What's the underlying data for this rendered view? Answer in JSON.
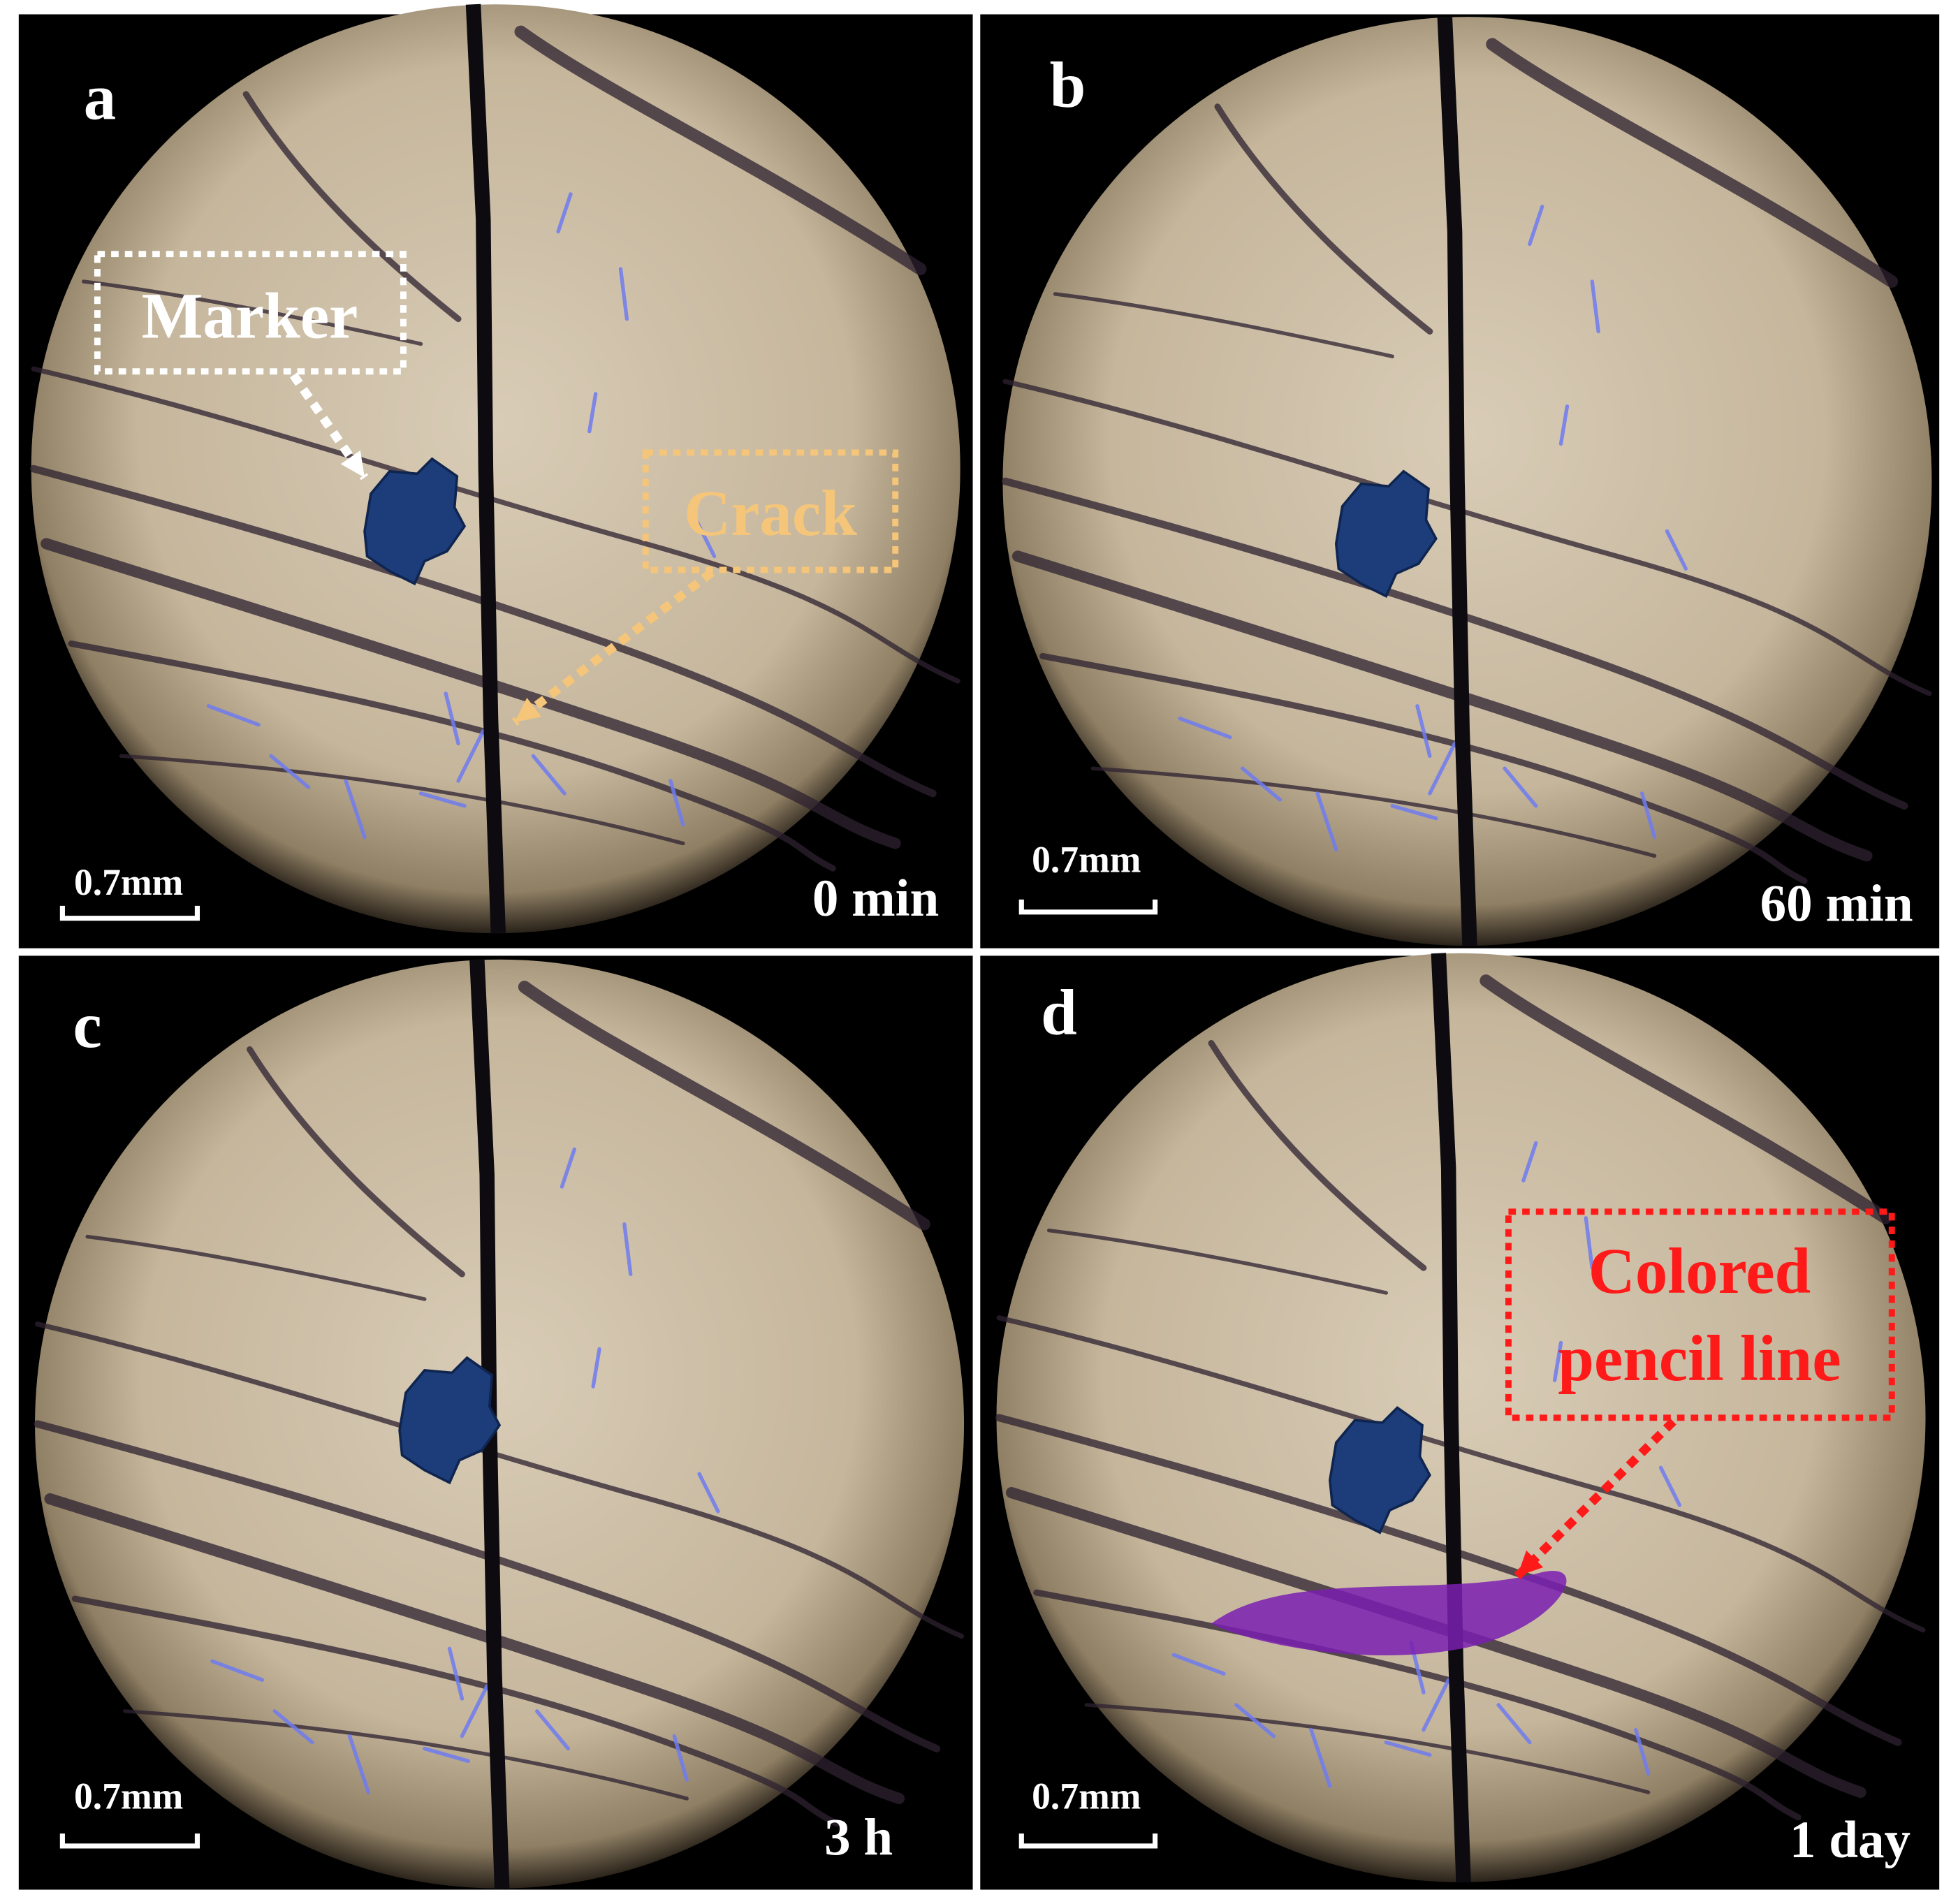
{
  "panels": [
    {
      "label": "a",
      "time": "0 min",
      "scale_bar": "0.7mm",
      "annotations": [
        "Marker",
        "Crack"
      ]
    },
    {
      "label": "b",
      "time": "60 min",
      "scale_bar": "0.7mm"
    },
    {
      "label": "c",
      "time": "3 h",
      "scale_bar": "0.7mm"
    },
    {
      "label": "d",
      "time": "1 day",
      "scale_bar": "0.7mm",
      "annotations": [
        "Colored",
        "pencil line"
      ]
    }
  ]
}
